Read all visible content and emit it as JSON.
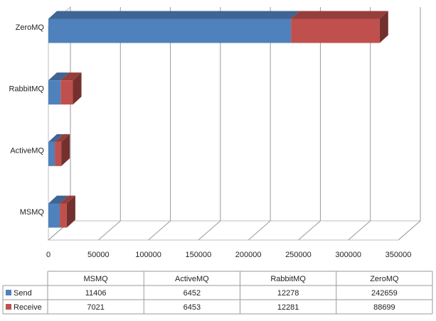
{
  "chart_data": {
    "type": "bar",
    "orientation": "horizontal",
    "stacked": true,
    "style_3d": true,
    "categories": [
      "MSMQ",
      "ActiveMQ",
      "RabbitMQ",
      "ZeroMQ"
    ],
    "series": [
      {
        "name": "Send",
        "color": "#4f81bd",
        "values": [
          11406,
          6452,
          12278,
          242659
        ]
      },
      {
        "name": "Receive",
        "color": "#c0504d",
        "values": [
          7021,
          6453,
          12281,
          88699
        ]
      }
    ],
    "xlim": [
      0,
      350000
    ],
    "x_ticks": [
      "0",
      "50000",
      "100000",
      "150000",
      "200000",
      "250000",
      "300000",
      "350000"
    ],
    "grid": true,
    "legend": "data-table-below",
    "data_table": {
      "columns": [
        "MSMQ",
        "ActiveMQ",
        "RabbitMQ",
        "ZeroMQ"
      ],
      "rows": [
        {
          "label": "Send",
          "cells": [
            "11406",
            "6452",
            "12278",
            "242659"
          ]
        },
        {
          "label": "Receive",
          "cells": [
            "7021",
            "6453",
            "12281",
            "88699"
          ]
        }
      ]
    }
  }
}
